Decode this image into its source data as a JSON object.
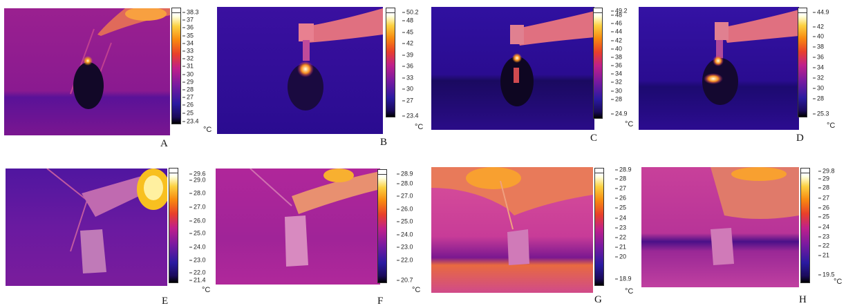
{
  "panels": [
    {
      "id": "A",
      "letter": "A",
      "unit": "°C",
      "ticks": [
        "38.3",
        "37",
        "36",
        "35",
        "34",
        "33",
        "32",
        "31",
        "30",
        "29",
        "28",
        "27",
        "26",
        "25",
        "23.4"
      ]
    },
    {
      "id": "B",
      "letter": "B",
      "unit": "°C",
      "ticks": [
        "50.2",
        "48",
        "45",
        "42",
        "39",
        "36",
        "33",
        "30",
        "27",
        "23.4"
      ]
    },
    {
      "id": "C",
      "letter": "C",
      "unit": "°C",
      "ticks": [
        "49.2",
        "48",
        "46",
        "44",
        "42",
        "40",
        "38",
        "36",
        "34",
        "32",
        "30",
        "28",
        "24.9"
      ]
    },
    {
      "id": "D",
      "letter": "D",
      "unit": "°C",
      "ticks": [
        "44.9",
        "42",
        "40",
        "38",
        "36",
        "34",
        "32",
        "30",
        "28",
        "25.3"
      ]
    },
    {
      "id": "E",
      "letter": "E",
      "unit": "°C",
      "ticks": [
        "29.6",
        "29.0",
        "28.0",
        "27.0",
        "26.0",
        "25.0",
        "24.0",
        "23.0",
        "22.0",
        "21.4"
      ]
    },
    {
      "id": "F",
      "letter": "F",
      "unit": "°C",
      "ticks": [
        "28.9",
        "28.0",
        "27.0",
        "26.0",
        "25.0",
        "24.0",
        "23.0",
        "22.0",
        "20.7"
      ]
    },
    {
      "id": "G",
      "letter": "G",
      "unit": "°C",
      "ticks": [
        "28.9",
        "28",
        "27",
        "26",
        "25",
        "24",
        "23",
        "22",
        "21",
        "20",
        "18.9"
      ]
    },
    {
      "id": "H",
      "letter": "H",
      "unit": "°C",
      "ticks": [
        "29.8",
        "29",
        "28",
        "27",
        "26",
        "25",
        "24",
        "23",
        "22",
        "21",
        "19.5"
      ]
    }
  ],
  "colors": {
    "background_cold": "#2a0a8a",
    "mid": "#a0208e",
    "warm": "#e8502a",
    "hot": "#fcd040"
  }
}
